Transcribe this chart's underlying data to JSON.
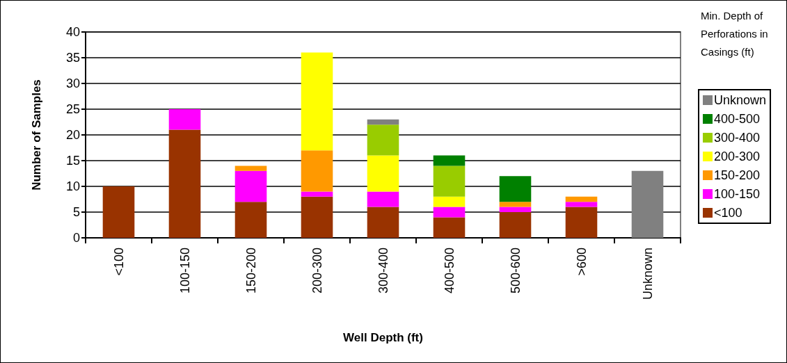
{
  "chart_data": {
    "type": "bar",
    "stacked": true,
    "xlabel": "Well Depth (ft)",
    "ylabel": "Number of Samples",
    "legend_title": "Min. Depth of Perforations in Casings (ft)",
    "legend": "right",
    "grid": "y",
    "categories": [
      "<100",
      "100-150",
      "150-200",
      "200-300",
      "300-400",
      "400-500",
      "500-600",
      ">600",
      "Unknown"
    ],
    "ylim": [
      0,
      40
    ],
    "yticks": [
      0,
      5,
      10,
      15,
      20,
      25,
      30,
      35,
      40
    ],
    "series": [
      {
        "name": "<100",
        "color": "#993300",
        "values": [
          10,
          21,
          7,
          8,
          6,
          4,
          5,
          6,
          null
        ]
      },
      {
        "name": "100-150",
        "color": "#ff00ff",
        "values": [
          null,
          4,
          6,
          1,
          3,
          2,
          1,
          1,
          null
        ]
      },
      {
        "name": "150-200",
        "color": "#ff9900",
        "values": [
          null,
          null,
          1,
          8,
          null,
          null,
          1,
          1,
          null
        ]
      },
      {
        "name": "200-300",
        "color": "#ffff00",
        "values": [
          null,
          null,
          null,
          19,
          7,
          2,
          null,
          null,
          null
        ]
      },
      {
        "name": "300-400",
        "color": "#99cc00",
        "values": [
          null,
          null,
          null,
          null,
          6,
          6,
          null,
          null,
          null
        ]
      },
      {
        "name": "400-500",
        "color": "#008000",
        "values": [
          null,
          null,
          null,
          null,
          null,
          2,
          5,
          null,
          null
        ]
      },
      {
        "name": "Unknown",
        "color": "#808080",
        "values": [
          null,
          null,
          null,
          null,
          1,
          null,
          null,
          null,
          13
        ]
      }
    ]
  }
}
